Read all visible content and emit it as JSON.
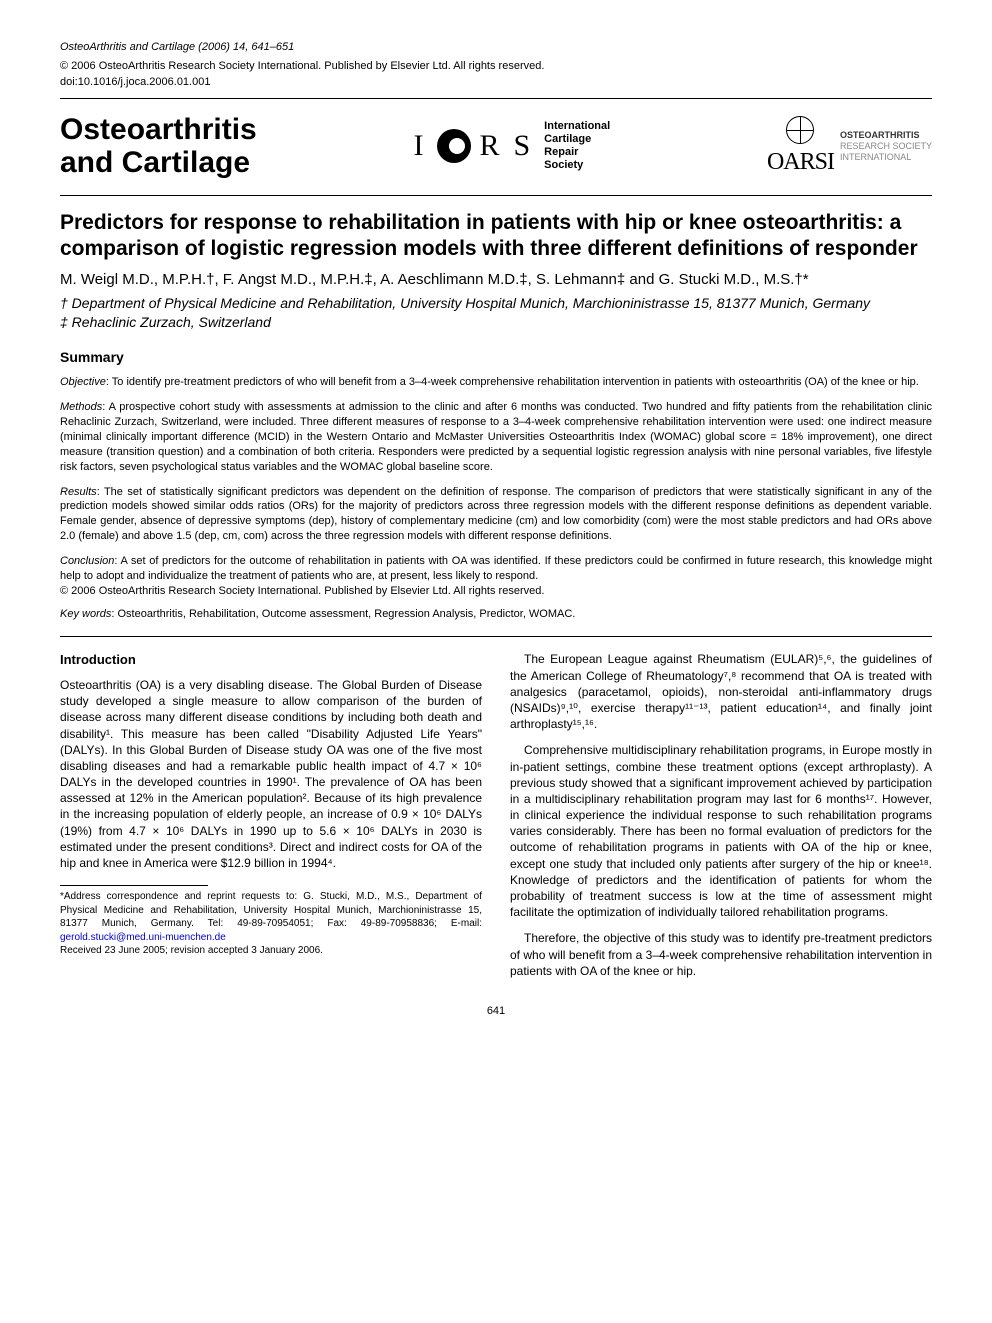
{
  "meta": {
    "journal_line": "OsteoArthritis and Cartilage (2006) 14, 641–651",
    "copyright": "© 2006 OsteoArthritis Research Society International. Published by Elsevier Ltd. All rights reserved.",
    "doi": "doi:10.1016/j.joca.2006.01.001"
  },
  "brand": {
    "journal_name_line1": "Osteoarthritis",
    "journal_name_line2": "and Cartilage",
    "icrs_i": "I",
    "icrs_r": "R",
    "icrs_s": "S",
    "icrs_text_l1": "International",
    "icrs_text_l2": "Cartilage",
    "icrs_text_l3": "Repair",
    "icrs_text_l4": "Society",
    "oarsi_logo": "OARSI",
    "oarsi_l1": "OSTEOARTHRITIS",
    "oarsi_l2": "RESEARCH SOCIETY",
    "oarsi_l3": "INTERNATIONAL"
  },
  "title": "Predictors for response to rehabilitation in patients with hip or knee osteoarthritis: a comparison of logistic regression models with three different definitions of responder",
  "authors": "M. Weigl M.D., M.P.H.†, F. Angst M.D., M.P.H.‡, A. Aeschlimann M.D.‡, S. Lehmann‡ and G. Stucki M.D., M.S.†*",
  "affiliations": {
    "a1": "† Department of Physical Medicine and Rehabilitation, University Hospital Munich, Marchioninistrasse 15, 81377 Munich, Germany",
    "a2": "‡ Rehaclinic Zurzach, Switzerland"
  },
  "summary_heading": "Summary",
  "abstract": {
    "objective_label": "Objective",
    "objective_text": ": To identify pre-treatment predictors of who will benefit from a 3–4-week comprehensive rehabilitation intervention in patients with osteoarthritis (OA) of the knee or hip.",
    "methods_label": "Methods",
    "methods_text": ": A prospective cohort study with assessments at admission to the clinic and after 6 months was conducted. Two hundred and fifty patients from the rehabilitation clinic Rehaclinic Zurzach, Switzerland, were included. Three different measures of response to a 3–4-week comprehensive rehabilitation intervention were used: one indirect measure (minimal clinically important difference (MCID) in the Western Ontario and McMaster Universities Osteoarthritis Index (WOMAC) global score = 18% improvement), one direct measure (transition question) and a combination of both criteria. Responders were predicted by a sequential logistic regression analysis with nine personal variables, five lifestyle risk factors, seven psychological status variables and the WOMAC global baseline score.",
    "results_label": "Results",
    "results_text": ": The set of statistically significant predictors was dependent on the definition of response. The comparison of predictors that were statistically significant in any of the prediction models showed similar odds ratios (ORs) for the majority of predictors across three regression models with the different response definitions as dependent variable. Female gender, absence of depressive symptoms (dep), history of complementary medicine (cm) and low comorbidity (com) were the most stable predictors and had ORs above 2.0 (female) and above 1.5 (dep, cm, com) across the three regression models with different response definitions.",
    "conclusion_label": "Conclusion",
    "conclusion_text": ": A set of predictors for the outcome of rehabilitation in patients with OA was identified. If these predictors could be confirmed in future research, this knowledge might help to adopt and individualize the treatment of patients who are, at present, less likely to respond.",
    "copyright_line": "© 2006 OsteoArthritis Research Society International. Published by Elsevier Ltd. All rights reserved."
  },
  "keywords_label": "Key words",
  "keywords_text": ": Osteoarthritis, Rehabilitation, Outcome assessment, Regression Analysis, Predictor, WOMAC.",
  "intro_heading": "Introduction",
  "body": {
    "left_p1": "Osteoarthritis (OA) is a very disabling disease. The Global Burden of Disease study developed a single measure to allow comparison of the burden of disease across many different disease conditions by including both death and disability¹. This measure has been called \"Disability Adjusted Life Years\" (DALYs). In this Global Burden of Disease study OA was one of the five most disabling diseases and had a remarkable public health impact of 4.7 × 10⁶ DALYs in the developed countries in 1990¹. The prevalence of OA has been assessed at 12% in the American population². Because of its high prevalence in the increasing population of elderly people, an increase of 0.9 × 10⁶ DALYs (19%) from 4.7 × 10⁶ DALYs in 1990 up to 5.6 × 10⁶ DALYs in 2030 is estimated under the present conditions³. Direct and indirect costs for OA of the hip and knee in America were $12.9 billion in 1994⁴.",
    "right_p1": "The European League against Rheumatism (EULAR)⁵,⁶, the guidelines of the American College of Rheumatology⁷,⁸ recommend that OA is treated with analgesics (paracetamol, opioids), non-steroidal anti-inflammatory drugs (NSAIDs)⁹,¹⁰, exercise therapy¹¹⁻¹³, patient education¹⁴, and finally joint arthroplasty¹⁵,¹⁶.",
    "right_p2": "Comprehensive multidisciplinary rehabilitation programs, in Europe mostly in in-patient settings, combine these treatment options (except arthroplasty). A previous study showed that a significant improvement achieved by participation in a multidisciplinary rehabilitation program may last for 6 months¹⁷. However, in clinical experience the individual response to such rehabilitation programs varies considerably. There has been no formal evaluation of predictors for the outcome of rehabilitation programs in patients with OA of the hip or knee, except one study that included only patients after surgery of the hip or knee¹⁸. Knowledge of predictors and the identification of patients for whom the probability of treatment success is low at the time of assessment might facilitate the optimization of individually tailored rehabilitation programs.",
    "right_p3": "Therefore, the objective of this study was to identify pre-treatment predictors of who will benefit from a 3–4-week comprehensive rehabilitation intervention in patients with OA of the knee or hip."
  },
  "footnote": {
    "text": "*Address correspondence and reprint requests to: G. Stucki, M.D., M.S., Department of Physical Medicine and Rehabilitation, University Hospital Munich, Marchioninistrasse 15, 81377 Munich, Germany. Tel: 49-89-70954051; Fax: 49-89-70958836; E-mail: ",
    "email": "gerold.stucki@med.uni-muenchen.de",
    "received": "Received 23 June 2005; revision accepted 3 January 2006."
  },
  "page_number": "641"
}
